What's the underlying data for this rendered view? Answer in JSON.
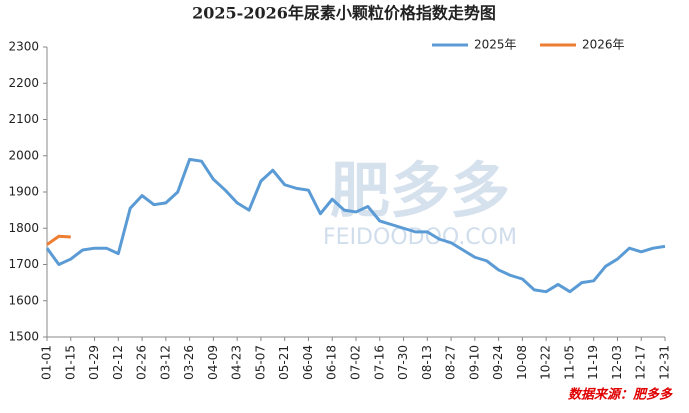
{
  "chart_data": {
    "type": "line",
    "title": "2025-2026年尿素小颗粒价格指数走势图",
    "categories": [
      "01-01",
      null,
      "01-15",
      null,
      "01-29",
      null,
      "02-12",
      null,
      "02-26",
      null,
      "03-12",
      null,
      "03-26",
      null,
      "04-09",
      null,
      "04-23",
      null,
      "05-07",
      null,
      "05-21",
      null,
      "06-04",
      null,
      "06-18",
      null,
      "07-02",
      null,
      "07-16",
      null,
      "07-30",
      null,
      "08-13",
      null,
      "08-27",
      null,
      "09-10",
      null,
      "09-24",
      null,
      "10-08",
      null,
      "10-22",
      null,
      "11-05",
      null,
      "11-19",
      null,
      "12-03",
      null,
      "12-17",
      null,
      "12-31"
    ],
    "series": [
      {
        "name": "2025年",
        "color": "#5b9bd5",
        "values": [
          1745,
          1700,
          1715,
          1740,
          1745,
          1745,
          1730,
          1855,
          1890,
          1865,
          1870,
          1900,
          1990,
          1985,
          1935,
          1905,
          1870,
          1850,
          1930,
          1960,
          1920,
          1910,
          1905,
          1840,
          1880,
          1850,
          1845,
          1860,
          1820,
          1810,
          1800,
          1790,
          1790,
          1770,
          1760,
          1740,
          1720,
          1710,
          1685,
          1670,
          1660,
          1630,
          1625,
          1645,
          1625,
          1650,
          1655,
          1695,
          1715,
          1745,
          1735,
          1745,
          1750
        ]
      },
      {
        "name": "2026年",
        "color": "#ed7d31",
        "values": [
          1755,
          1778,
          1776,
          null,
          null,
          null,
          null,
          null,
          null,
          null,
          null,
          null,
          null,
          null,
          null,
          null,
          null,
          null,
          null,
          null,
          null,
          null,
          null,
          null,
          null,
          null,
          null,
          null,
          null,
          null,
          null,
          null,
          null,
          null,
          null,
          null,
          null,
          null,
          null,
          null,
          null,
          null,
          null,
          null,
          null,
          null,
          null,
          null,
          null,
          null,
          null,
          null,
          null
        ]
      }
    ],
    "ylim": [
      1500,
      2300
    ],
    "yticks": [
      1500,
      1600,
      1700,
      1800,
      1900,
      2000,
      2100,
      2200,
      2300
    ],
    "grid": false,
    "legend": "top-right",
    "watermark": [
      "肥多多",
      "FEIDOODOO.COM"
    ],
    "source": "数据来源：肥多多"
  }
}
